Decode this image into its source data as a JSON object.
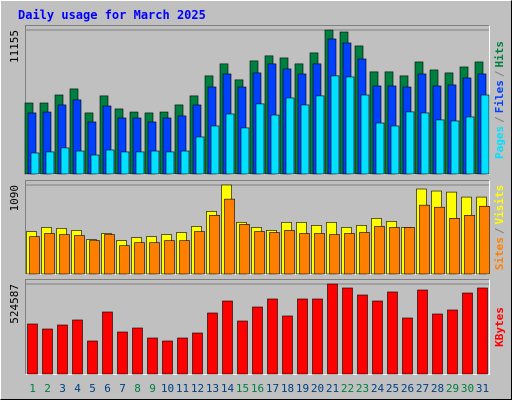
{
  "chart_data": [
    {
      "type": "bar",
      "title": "Daily usage for March 2025",
      "legend_separator": "/",
      "ylim": [
        0,
        11155
      ],
      "yticks": [
        11155
      ],
      "series": [
        {
          "name": "Hits",
          "color": "#008040",
          "values": [
            5500,
            5500,
            6120,
            6590,
            4730,
            6050,
            5040,
            4800,
            4730,
            4800,
            5350,
            6050,
            7600,
            8530,
            7290,
            8760,
            9150,
            8990,
            8530,
            9380,
            11155,
            11000,
            9920,
            7910,
            7910,
            7600,
            8680,
            8060,
            7830,
            8290,
            8680
          ]
        },
        {
          "name": "Files",
          "color": "#0040ff",
          "values": [
            4730,
            4800,
            5350,
            5740,
            4030,
            5270,
            4340,
            4340,
            4030,
            4340,
            4500,
            5350,
            6740,
            7750,
            6740,
            7830,
            8530,
            8140,
            7750,
            8530,
            10460,
            10150,
            8910,
            6820,
            6820,
            6740,
            7750,
            6820,
            6900,
            7440,
            7750
          ]
        },
        {
          "name": "Pages",
          "color": "#00e0ff",
          "values": [
            1630,
            1710,
            2020,
            1780,
            1470,
            1860,
            1710,
            1710,
            1780,
            1710,
            1780,
            2870,
            3720,
            4650,
            3570,
            5430,
            4570,
            5890,
            5350,
            6050,
            7600,
            7520,
            6120,
            3950,
            3720,
            4810,
            4730,
            4190,
            4110,
            4420,
            6120
          ]
        }
      ]
    },
    {
      "type": "bar",
      "ylim": [
        0,
        1090
      ],
      "yticks": [
        1090
      ],
      "series": [
        {
          "name": "Visits",
          "color": "#ffff00",
          "values": [
            520,
            570,
            558,
            533,
            421,
            496,
            409,
            446,
            458,
            483,
            508,
            582,
            768,
            1090,
            632,
            570,
            533,
            632,
            632,
            595,
            632,
            570,
            595,
            681,
            644,
            570,
            1041,
            1016,
            1003,
            942,
            942
          ]
        },
        {
          "name": "Sites",
          "color": "#ff8000",
          "values": [
            458,
            496,
            483,
            471,
            409,
            483,
            347,
            384,
            384,
            409,
            409,
            520,
            719,
            917,
            607,
            520,
            508,
            533,
            496,
            496,
            483,
            496,
            508,
            582,
            570,
            570,
            843,
            818,
            681,
            719,
            830
          ]
        }
      ]
    },
    {
      "type": "bar",
      "ylim": [
        0,
        524587
      ],
      "yticks": [
        524587
      ],
      "categories": [
        "1",
        "2",
        "3",
        "4",
        "5",
        "6",
        "7",
        "8",
        "9",
        "10",
        "11",
        "12",
        "13",
        "14",
        "15",
        "16",
        "17",
        "18",
        "19",
        "20",
        "21",
        "22",
        "23",
        "24",
        "25",
        "26",
        "27",
        "28",
        "29",
        "30",
        "31"
      ],
      "category_colors": [
        "#008040",
        "#008040",
        "#004080",
        "#004080",
        "#004080",
        "#004080",
        "#004080",
        "#008040",
        "#008040",
        "#004080",
        "#004080",
        "#004080",
        "#004080",
        "#004080",
        "#008040",
        "#008040",
        "#004080",
        "#004080",
        "#004080",
        "#004080",
        "#004080",
        "#008040",
        "#008040",
        "#004080",
        "#004080",
        "#004080",
        "#004080",
        "#004080",
        "#008040",
        "#008040",
        "#004080"
      ],
      "series": [
        {
          "name": "KBytes",
          "color": "#ff0000",
          "values": [
            291450,
            262300,
            285600,
            314800,
            192400,
            361400,
            244800,
            268100,
            209800,
            192400,
            209800,
            239000,
            355600,
            425500,
            308900,
            390500,
            437200,
            338100,
            437200,
            437200,
            524587,
            501300,
            460500,
            425500,
            478000,
            326400,
            489600,
            349700,
            373100,
            472100,
            501300
          ]
        }
      ]
    }
  ]
}
